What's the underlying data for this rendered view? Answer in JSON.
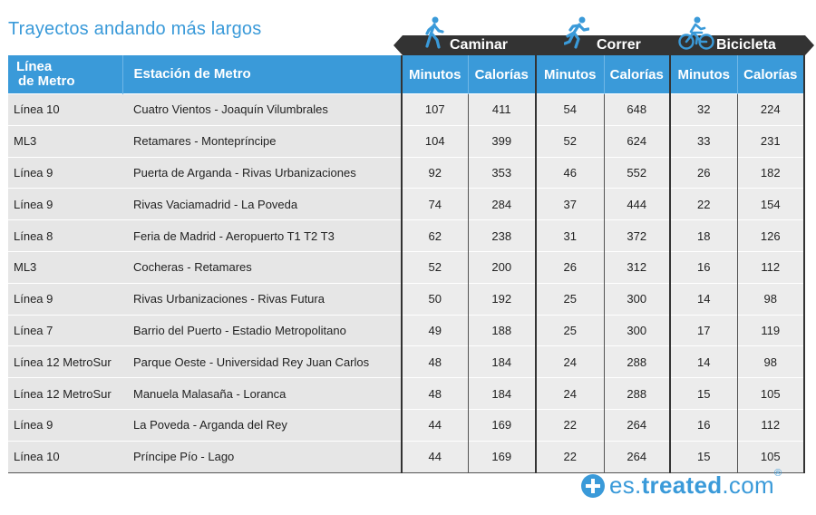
{
  "title": "Trayectos andando más largos",
  "categories": {
    "walk": "Caminar",
    "run": "Correr",
    "bike": "Bicicleta"
  },
  "icons": {
    "walk": "walking-person-icon",
    "run": "running-person-icon",
    "bike": "cyclist-icon"
  },
  "headers": {
    "line": "Línea de Metro",
    "line_1": "Línea",
    "line_2": "de Metro",
    "station": "Estación de Metro",
    "minutes": "Minutos",
    "calories": "Calorías"
  },
  "chart_data": {
    "type": "table",
    "title": "Trayectos andando más largos",
    "groups": [
      "Caminar",
      "Correr",
      "Bicicleta"
    ],
    "columns": [
      "Línea de Metro",
      "Estación de Metro",
      "Caminar Minutos",
      "Caminar Calorías",
      "Correr Minutos",
      "Correr Calorías",
      "Bicicleta Minutos",
      "Bicicleta Calorías"
    ],
    "rows": [
      [
        "Línea 10",
        "Cuatro Vientos - Joaquín Vilumbrales",
        "107",
        "411",
        "54",
        "648",
        "32",
        "224"
      ],
      [
        "ML3",
        "Retamares - Montepríncipe",
        "104",
        "399",
        "52",
        "624",
        "33",
        "231"
      ],
      [
        "Línea 9",
        "Puerta de Arganda - Rivas Urbanizaciones",
        "92",
        "353",
        "46",
        "552",
        "26",
        "182"
      ],
      [
        "Línea 9",
        "Rivas Vaciamadrid - La Poveda",
        "74",
        "284",
        "37",
        "444",
        "22",
        "154"
      ],
      [
        "Línea 8",
        "Feria de Madrid - Aeropuerto T1 T2 T3",
        "62",
        "238",
        "31",
        "372",
        "18",
        "126"
      ],
      [
        "ML3",
        "Cocheras - Retamares",
        "52",
        "200",
        "26",
        "312",
        "16",
        "112"
      ],
      [
        "Línea 9",
        "Rivas Urbanizaciones - Rivas Futura",
        "50",
        "192",
        "25",
        "300",
        "14",
        "98"
      ],
      [
        "Línea 7",
        "Barrio del Puerto - Estadio Metropolitano",
        "49",
        "188",
        "25",
        "300",
        "17",
        "119"
      ],
      [
        "Línea 12 MetroSur",
        "Parque Oeste - Universidad Rey Juan Carlos",
        "48",
        "184",
        "24",
        "288",
        "14",
        "98"
      ],
      [
        "Línea 12 MetroSur",
        "Manuela Malasaña - Loranca",
        "48",
        "184",
        "24",
        "288",
        "15",
        "105"
      ],
      [
        "Línea 9",
        "La Poveda - Arganda del Rey",
        "44",
        "169",
        "22",
        "264",
        "16",
        "112"
      ],
      [
        "Línea 10",
        "Príncipe Pío - Lago",
        "44",
        "169",
        "22",
        "264",
        "15",
        "105"
      ]
    ]
  },
  "logo": {
    "prefix": "es.",
    "brand": "treated",
    "suffix": ".com",
    "reg": "®"
  },
  "colors": {
    "accent": "#3a9ad9",
    "dark": "#333333"
  }
}
